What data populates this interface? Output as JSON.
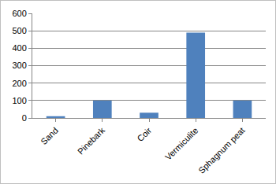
{
  "chart_data": {
    "type": "bar",
    "categories": [
      "Sand",
      "Pinebark",
      "Coir",
      "Vermiculite",
      "Sphagnum peat"
    ],
    "values": [
      10,
      100,
      30,
      490,
      100
    ],
    "color": "#4f81bd",
    "ylim": [
      0,
      600
    ],
    "yticks": [
      0,
      100,
      200,
      300,
      400,
      500,
      600
    ],
    "grid": true
  }
}
